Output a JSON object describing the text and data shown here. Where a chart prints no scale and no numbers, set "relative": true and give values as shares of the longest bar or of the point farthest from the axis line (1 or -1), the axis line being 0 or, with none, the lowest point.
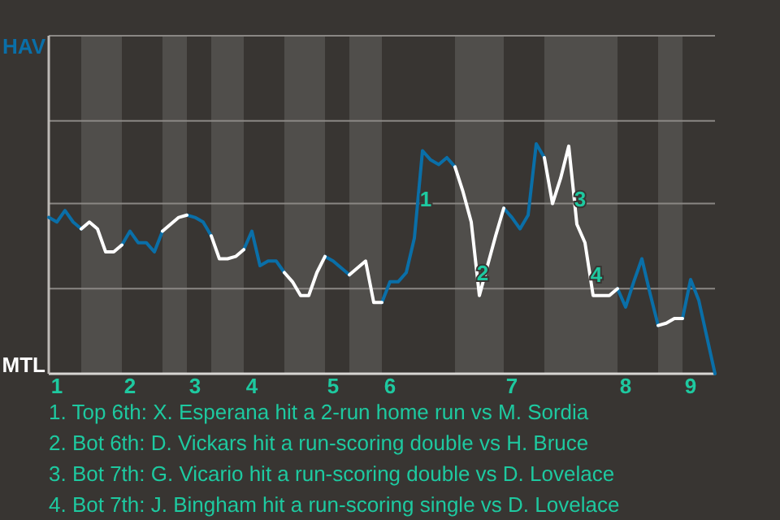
{
  "chart_data": {
    "type": "line",
    "relative": true,
    "categories": [
      null,
      "1",
      null,
      null,
      null,
      null,
      null,
      null,
      null,
      null,
      "2",
      null,
      null,
      null,
      null,
      null,
      null,
      null,
      "3",
      null,
      null,
      null,
      null,
      null,
      null,
      "4",
      null,
      null,
      null,
      null,
      null,
      null,
      null,
      null,
      null,
      "5",
      null,
      null,
      null,
      null,
      null,
      null,
      "6",
      null,
      null,
      null,
      null,
      null,
      null,
      null,
      null,
      null,
      null,
      null,
      null,
      null,
      null,
      "7",
      null,
      null,
      null,
      null,
      null,
      null,
      null,
      null,
      null,
      null,
      null,
      null,
      null,
      "8",
      null,
      null,
      null,
      null,
      null,
      null,
      null,
      "9",
      null,
      null,
      null
    ],
    "marker": "none",
    "ref_lines": [
      {
        "axis": "y",
        "value": 0.37,
        "color": "#8a8784"
      },
      {
        "axis": "y",
        "value": 0.74,
        "color": "#8a8784"
      },
      {
        "axis": "y",
        "value": 1.1,
        "color": "#8a8784"
      },
      {
        "axis": "y",
        "value": 1.47,
        "color": "#8a8784"
      }
    ],
    "series": [
      {
        "color": "#0a6fa8",
        "values": [
          0.68,
          0.66,
          0.71,
          0.66,
          0.63,
          null,
          null,
          null,
          null,
          0.56,
          0.62,
          0.57,
          0.57,
          0.53,
          0.62,
          null,
          null,
          0.69,
          0.68,
          0.66,
          0.6,
          null,
          null,
          null,
          0.54,
          0.62,
          0.47,
          0.49,
          0.49,
          0.44,
          null,
          null,
          null,
          null,
          0.51,
          0.49,
          0.46,
          0.43,
          null,
          null,
          null,
          0.31,
          0.4,
          0.4,
          0.44,
          0.59,
          0.97,
          0.93,
          0.91,
          0.94,
          0.9,
          null,
          null,
          null,
          null,
          null,
          0.72,
          0.68,
          0.63,
          0.69,
          1,
          0.94,
          null,
          null,
          null,
          null,
          null,
          null,
          null,
          null,
          0.37,
          0.29,
          0.4,
          0.5,
          0.35,
          0.21,
          null,
          null,
          0.24,
          0.41,
          0.32,
          0.16,
          0
        ]
      },
      {
        "color": "#ffffff",
        "values": [
          null,
          null,
          null,
          null,
          0.63,
          0.66,
          0.63,
          0.53,
          0.53,
          0.56,
          null,
          null,
          null,
          null,
          0.62,
          0.65,
          0.68,
          0.69,
          null,
          null,
          0.6,
          0.5,
          0.5,
          0.51,
          0.54,
          null,
          null,
          null,
          null,
          0.44,
          0.4,
          0.34,
          0.34,
          0.44,
          0.51,
          null,
          null,
          0.43,
          0.46,
          0.49,
          0.31,
          0.31,
          null,
          null,
          null,
          null,
          null,
          null,
          null,
          null,
          0.9,
          0.79,
          0.66,
          0.34,
          0.47,
          0.6,
          0.72,
          null,
          null,
          null,
          null,
          0.94,
          0.74,
          0.85,
          0.99,
          0.65,
          0.57,
          0.34,
          0.34,
          0.34,
          0.37,
          null,
          null,
          null,
          null,
          0.21,
          0.22,
          0.24,
          0.24,
          null,
          null,
          null,
          null
        ]
      }
    ],
    "annotations": [
      "HAV",
      "MTL",
      {
        "text": "1",
        "y": 0.76
      },
      {
        "text": "2",
        "y": 0.44
      },
      {
        "text": "3",
        "y": 0.76
      },
      {
        "text": "4",
        "y": 0.43
      },
      "1. Top 6th: X. Esperana hit a 2-run home run vs M. Sordia",
      "2. Bot 6th: D. Vickars hit a run-scoring double vs H. Bruce",
      "3. Bot 7th: G. Vicario hit a run-scoring double vs D. Lovelace",
      "4. Bot 7th: J. Bingham hit a run-scoring single vs D. Lovelace"
    ]
  }
}
